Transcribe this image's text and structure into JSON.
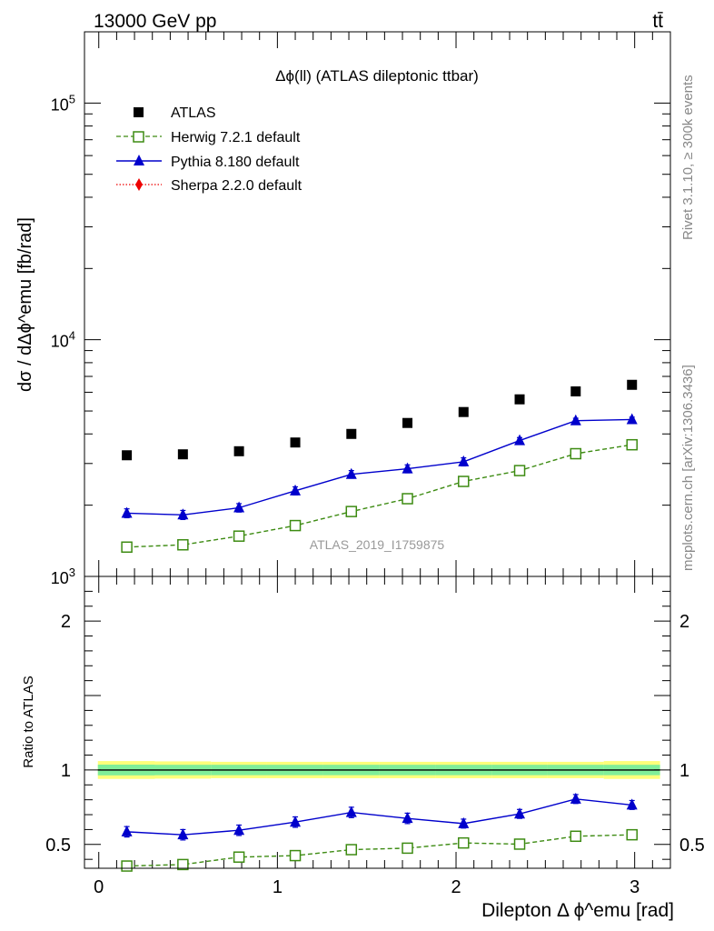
{
  "header": {
    "energy_label": "13000 GeV pp",
    "process_label": "tt̄"
  },
  "side_labels": {
    "rivet": "Rivet 3.1.10, ≥ 300k events",
    "mcplots": "mcplots.cern.ch [arXiv:1306.3436]"
  },
  "analysis_id": "ATLAS_2019_I1759875",
  "colors": {
    "atlas": "#000000",
    "herwig": "#3d8b12",
    "pythia": "#0000cc",
    "sherpa": "#ee0000",
    "band_outer": "#ffff7a",
    "band_inner": "#80ee99"
  },
  "chart_data": [
    {
      "type": "scatter",
      "title": "Δϕ(ll) (ATLAS dileptonic ttbar)",
      "ylabel": "dσ / dΔϕ^emu [fb/rad]",
      "y_scale": "log",
      "ylim": [
        1000,
        200000
      ],
      "xlim": [
        -0.08,
        3.2
      ],
      "y_ticks": [
        "10^3",
        "10^4",
        "10^5"
      ],
      "legend_position": "top-left",
      "x": [
        0.157,
        0.471,
        0.785,
        1.1,
        1.414,
        1.728,
        2.042,
        2.356,
        2.67,
        2.985
      ],
      "series": [
        {
          "name": "ATLAS",
          "marker": "square-filled",
          "values": [
            3250,
            3280,
            3380,
            3680,
            4000,
            4450,
            4950,
            5600,
            6050,
            6450
          ]
        },
        {
          "name": "Herwig 7.2.1 default",
          "marker": "square-open",
          "line": "dashed",
          "values": [
            1330,
            1360,
            1480,
            1640,
            1880,
            2130,
            2520,
            2800,
            3300,
            3600
          ]
        },
        {
          "name": "Pythia 8.180 default",
          "marker": "triangle-filled",
          "line": "solid",
          "values": [
            1850,
            1820,
            1950,
            2300,
            2700,
            2850,
            3050,
            3750,
            4550,
            4600
          ],
          "errors": [
            80,
            80,
            80,
            90,
            100,
            110,
            120,
            110,
            110,
            110
          ]
        },
        {
          "name": "Sherpa 2.2.0 default",
          "marker": "diamond-filled",
          "line": "dotted",
          "values": []
        }
      ]
    },
    {
      "type": "line",
      "ylabel": "Ratio to ATLAS",
      "xlabel": "Dilepton Δ ϕ^emu [rad]",
      "ylim": [
        0.34,
        2.3
      ],
      "xlim": [
        -0.08,
        3.2
      ],
      "x_ticks": [
        0,
        1,
        2,
        3
      ],
      "y_ticks": [
        0.5,
        1,
        2
      ],
      "x": [
        0.157,
        0.471,
        0.785,
        1.1,
        1.414,
        1.728,
        2.042,
        2.356,
        2.67,
        2.985
      ],
      "reference_line": 1,
      "band_inner": [
        [
          -0.005,
          0.036
        ],
        [
          0.314,
          0.035
        ],
        [
          0.628,
          0.035
        ],
        [
          0.942,
          0.035
        ],
        [
          1.257,
          0.035
        ],
        [
          1.571,
          0.035
        ],
        [
          1.885,
          0.035
        ],
        [
          2.199,
          0.035
        ],
        [
          2.513,
          0.035
        ],
        [
          2.827,
          0.035
        ]
      ],
      "band_outer": [
        [
          -0.005,
          0.06
        ],
        [
          0.314,
          0.058
        ],
        [
          0.628,
          0.055
        ],
        [
          0.942,
          0.055
        ],
        [
          1.257,
          0.055
        ],
        [
          1.571,
          0.055
        ],
        [
          1.885,
          0.055
        ],
        [
          2.199,
          0.055
        ],
        [
          2.513,
          0.055
        ],
        [
          2.827,
          0.06
        ]
      ],
      "series": [
        {
          "name": "Herwig 7.2.1 default",
          "values": [
            0.355,
            0.365,
            0.415,
            0.425,
            0.465,
            0.475,
            0.51,
            0.502,
            0.555,
            0.565
          ]
        },
        {
          "name": "Pythia 8.180 default",
          "values": [
            0.585,
            0.565,
            0.595,
            0.65,
            0.715,
            0.675,
            0.64,
            0.705,
            0.805,
            0.765
          ],
          "errors": [
            0.035,
            0.035,
            0.035,
            0.035,
            0.035,
            0.035,
            0.03,
            0.03,
            0.03,
            0.03
          ]
        }
      ]
    }
  ]
}
